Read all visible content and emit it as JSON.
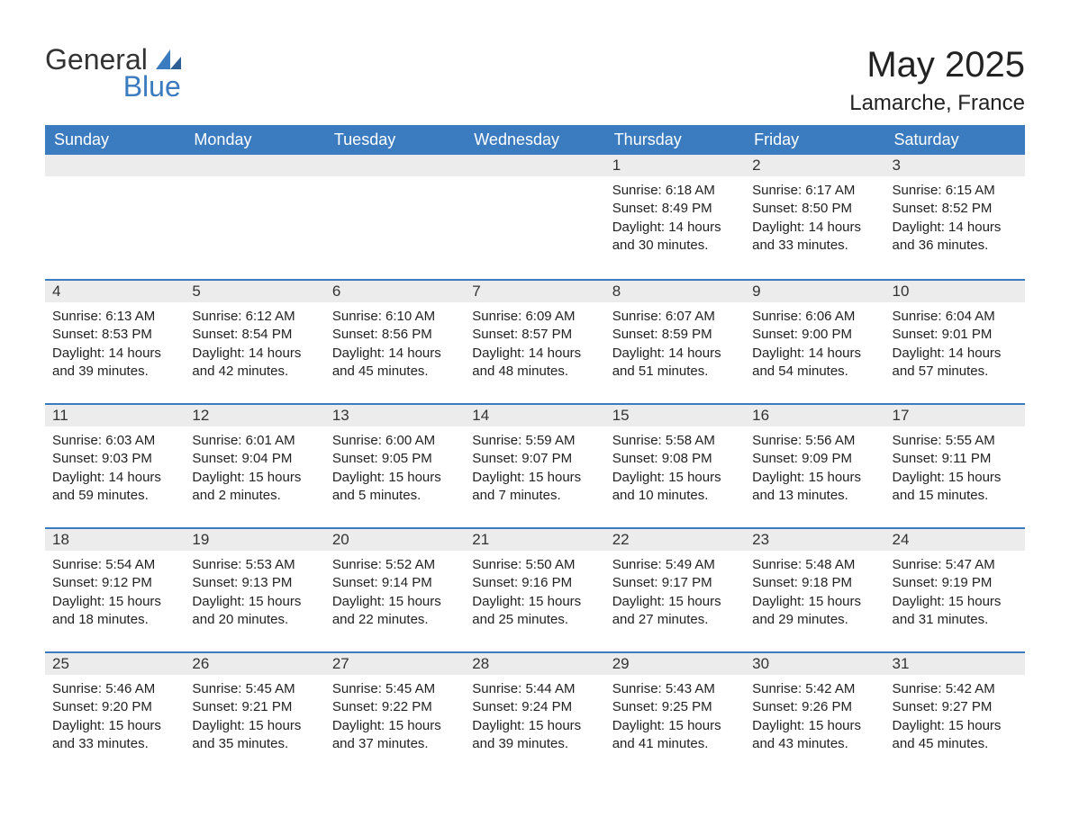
{
  "logo": {
    "text1": "General",
    "text2": "Blue"
  },
  "title": "May 2025",
  "location": "Lamarche, France",
  "colors": {
    "header_bg": "#3b7bbf",
    "header_text": "#ffffff",
    "daynum_bg": "#ececec",
    "border": "#3b7bbf",
    "text": "#222222",
    "logo_blue": "#3b7bbf"
  },
  "weekdays": [
    "Sunday",
    "Monday",
    "Tuesday",
    "Wednesday",
    "Thursday",
    "Friday",
    "Saturday"
  ],
  "weeks": [
    [
      {
        "empty": true
      },
      {
        "empty": true
      },
      {
        "empty": true
      },
      {
        "empty": true
      },
      {
        "day": "1",
        "sunrise": "Sunrise: 6:18 AM",
        "sunset": "Sunset: 8:49 PM",
        "daylight": "Daylight: 14 hours and 30 minutes."
      },
      {
        "day": "2",
        "sunrise": "Sunrise: 6:17 AM",
        "sunset": "Sunset: 8:50 PM",
        "daylight": "Daylight: 14 hours and 33 minutes."
      },
      {
        "day": "3",
        "sunrise": "Sunrise: 6:15 AM",
        "sunset": "Sunset: 8:52 PM",
        "daylight": "Daylight: 14 hours and 36 minutes."
      }
    ],
    [
      {
        "day": "4",
        "sunrise": "Sunrise: 6:13 AM",
        "sunset": "Sunset: 8:53 PM",
        "daylight": "Daylight: 14 hours and 39 minutes."
      },
      {
        "day": "5",
        "sunrise": "Sunrise: 6:12 AM",
        "sunset": "Sunset: 8:54 PM",
        "daylight": "Daylight: 14 hours and 42 minutes."
      },
      {
        "day": "6",
        "sunrise": "Sunrise: 6:10 AM",
        "sunset": "Sunset: 8:56 PM",
        "daylight": "Daylight: 14 hours and 45 minutes."
      },
      {
        "day": "7",
        "sunrise": "Sunrise: 6:09 AM",
        "sunset": "Sunset: 8:57 PM",
        "daylight": "Daylight: 14 hours and 48 minutes."
      },
      {
        "day": "8",
        "sunrise": "Sunrise: 6:07 AM",
        "sunset": "Sunset: 8:59 PM",
        "daylight": "Daylight: 14 hours and 51 minutes."
      },
      {
        "day": "9",
        "sunrise": "Sunrise: 6:06 AM",
        "sunset": "Sunset: 9:00 PM",
        "daylight": "Daylight: 14 hours and 54 minutes."
      },
      {
        "day": "10",
        "sunrise": "Sunrise: 6:04 AM",
        "sunset": "Sunset: 9:01 PM",
        "daylight": "Daylight: 14 hours and 57 minutes."
      }
    ],
    [
      {
        "day": "11",
        "sunrise": "Sunrise: 6:03 AM",
        "sunset": "Sunset: 9:03 PM",
        "daylight": "Daylight: 14 hours and 59 minutes."
      },
      {
        "day": "12",
        "sunrise": "Sunrise: 6:01 AM",
        "sunset": "Sunset: 9:04 PM",
        "daylight": "Daylight: 15 hours and 2 minutes."
      },
      {
        "day": "13",
        "sunrise": "Sunrise: 6:00 AM",
        "sunset": "Sunset: 9:05 PM",
        "daylight": "Daylight: 15 hours and 5 minutes."
      },
      {
        "day": "14",
        "sunrise": "Sunrise: 5:59 AM",
        "sunset": "Sunset: 9:07 PM",
        "daylight": "Daylight: 15 hours and 7 minutes."
      },
      {
        "day": "15",
        "sunrise": "Sunrise: 5:58 AM",
        "sunset": "Sunset: 9:08 PM",
        "daylight": "Daylight: 15 hours and 10 minutes."
      },
      {
        "day": "16",
        "sunrise": "Sunrise: 5:56 AM",
        "sunset": "Sunset: 9:09 PM",
        "daylight": "Daylight: 15 hours and 13 minutes."
      },
      {
        "day": "17",
        "sunrise": "Sunrise: 5:55 AM",
        "sunset": "Sunset: 9:11 PM",
        "daylight": "Daylight: 15 hours and 15 minutes."
      }
    ],
    [
      {
        "day": "18",
        "sunrise": "Sunrise: 5:54 AM",
        "sunset": "Sunset: 9:12 PM",
        "daylight": "Daylight: 15 hours and 18 minutes."
      },
      {
        "day": "19",
        "sunrise": "Sunrise: 5:53 AM",
        "sunset": "Sunset: 9:13 PM",
        "daylight": "Daylight: 15 hours and 20 minutes."
      },
      {
        "day": "20",
        "sunrise": "Sunrise: 5:52 AM",
        "sunset": "Sunset: 9:14 PM",
        "daylight": "Daylight: 15 hours and 22 minutes."
      },
      {
        "day": "21",
        "sunrise": "Sunrise: 5:50 AM",
        "sunset": "Sunset: 9:16 PM",
        "daylight": "Daylight: 15 hours and 25 minutes."
      },
      {
        "day": "22",
        "sunrise": "Sunrise: 5:49 AM",
        "sunset": "Sunset: 9:17 PM",
        "daylight": "Daylight: 15 hours and 27 minutes."
      },
      {
        "day": "23",
        "sunrise": "Sunrise: 5:48 AM",
        "sunset": "Sunset: 9:18 PM",
        "daylight": "Daylight: 15 hours and 29 minutes."
      },
      {
        "day": "24",
        "sunrise": "Sunrise: 5:47 AM",
        "sunset": "Sunset: 9:19 PM",
        "daylight": "Daylight: 15 hours and 31 minutes."
      }
    ],
    [
      {
        "day": "25",
        "sunrise": "Sunrise: 5:46 AM",
        "sunset": "Sunset: 9:20 PM",
        "daylight": "Daylight: 15 hours and 33 minutes."
      },
      {
        "day": "26",
        "sunrise": "Sunrise: 5:45 AM",
        "sunset": "Sunset: 9:21 PM",
        "daylight": "Daylight: 15 hours and 35 minutes."
      },
      {
        "day": "27",
        "sunrise": "Sunrise: 5:45 AM",
        "sunset": "Sunset: 9:22 PM",
        "daylight": "Daylight: 15 hours and 37 minutes."
      },
      {
        "day": "28",
        "sunrise": "Sunrise: 5:44 AM",
        "sunset": "Sunset: 9:24 PM",
        "daylight": "Daylight: 15 hours and 39 minutes."
      },
      {
        "day": "29",
        "sunrise": "Sunrise: 5:43 AM",
        "sunset": "Sunset: 9:25 PM",
        "daylight": "Daylight: 15 hours and 41 minutes."
      },
      {
        "day": "30",
        "sunrise": "Sunrise: 5:42 AM",
        "sunset": "Sunset: 9:26 PM",
        "daylight": "Daylight: 15 hours and 43 minutes."
      },
      {
        "day": "31",
        "sunrise": "Sunrise: 5:42 AM",
        "sunset": "Sunset: 9:27 PM",
        "daylight": "Daylight: 15 hours and 45 minutes."
      }
    ]
  ]
}
